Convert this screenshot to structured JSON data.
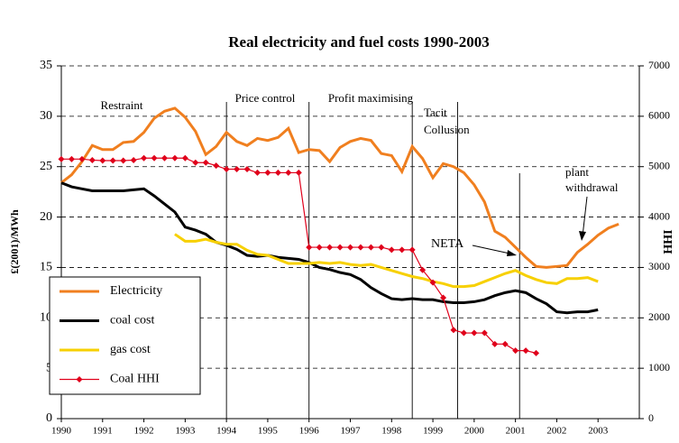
{
  "chart_data": {
    "type": "line",
    "title": "Real electricity and fuel costs 1990-2003",
    "y_label": "£(2001)/MWh",
    "y2_label": "HHI",
    "x": [
      1990,
      1990.25,
      1990.5,
      1990.75,
      1991,
      1991.25,
      1991.5,
      1991.75,
      1992,
      1992.25,
      1992.5,
      1992.75,
      1993,
      1993.25,
      1993.5,
      1993.75,
      1994,
      1994.25,
      1994.5,
      1994.75,
      1995,
      1995.25,
      1995.5,
      1995.75,
      1996,
      1996.25,
      1996.5,
      1996.75,
      1997,
      1997.25,
      1997.5,
      1997.75,
      1998,
      1998.25,
      1998.5,
      1998.75,
      1999,
      1999.25,
      1999.5,
      1999.75,
      2000,
      2000.25,
      2000.5,
      2000.75,
      2001,
      2001.25,
      2001.5,
      2001.75,
      2002,
      2002.25,
      2002.5,
      2002.75,
      2003,
      2003.25,
      2003.5
    ],
    "xlim": [
      1990,
      2004
    ],
    "xticks": [
      1990,
      1991,
      1992,
      1993,
      1994,
      1995,
      1996,
      1997,
      1998,
      1999,
      2000,
      2001,
      2002,
      2003
    ],
    "ylim": [
      0,
      35
    ],
    "yticks": [
      0,
      5,
      10,
      15,
      20,
      25,
      30,
      35
    ],
    "y2lim": [
      0,
      7000
    ],
    "y2ticks": [
      0,
      1000,
      2000,
      3000,
      4000,
      5000,
      6000,
      7000
    ],
    "grid": true,
    "legend": "lower left",
    "series": [
      {
        "name": "Electricity",
        "color": "#f07f1f",
        "values": [
          23.4,
          24.2,
          25.5,
          27.1,
          26.7,
          26.7,
          27.4,
          27.5,
          28.4,
          29.8,
          30.5,
          30.8,
          29.9,
          28.5,
          26.2,
          27.0,
          28.4,
          27.5,
          27.1,
          27.8,
          27.6,
          27.9,
          28.8,
          26.4,
          26.7,
          26.6,
          25.5,
          26.9,
          27.5,
          27.8,
          27.6,
          26.3,
          26.1,
          24.5,
          27.0,
          25.8,
          23.9,
          25.3,
          25.0,
          24.4,
          23.2,
          21.5,
          18.6,
          18.0,
          17.0,
          16.0,
          15.1,
          15.0,
          15.1,
          15.2,
          16.5,
          17.3,
          18.2,
          18.9,
          19.3
        ]
      },
      {
        "name": "coal cost",
        "color": "#000000",
        "values": [
          23.4,
          23.0,
          22.8,
          22.6,
          22.6,
          22.6,
          22.6,
          22.7,
          22.8,
          22.1,
          21.3,
          20.5,
          19.0,
          18.7,
          18.3,
          17.5,
          17.2,
          16.8,
          16.2,
          16.1,
          16.2,
          16.0,
          15.9,
          15.8,
          15.5,
          15.0,
          14.8,
          14.5,
          14.3,
          13.8,
          13.0,
          12.4,
          11.9,
          11.8,
          11.9,
          11.8,
          11.8,
          11.6,
          11.5,
          11.5,
          11.6,
          11.8,
          12.2,
          12.5,
          12.7,
          12.5,
          11.9,
          11.4,
          10.6,
          10.5,
          10.6,
          10.6,
          10.8,
          null,
          null
        ]
      },
      {
        "name": "gas cost",
        "color": "#f7d000",
        "values": [
          null,
          null,
          null,
          null,
          null,
          null,
          null,
          null,
          null,
          null,
          null,
          18.3,
          17.6,
          17.6,
          17.8,
          17.5,
          17.3,
          17.3,
          16.7,
          16.3,
          16.2,
          15.8,
          15.4,
          15.4,
          15.4,
          15.5,
          15.4,
          15.5,
          15.3,
          15.2,
          15.3,
          15.0,
          14.7,
          14.4,
          14.1,
          13.9,
          13.6,
          13.4,
          13.1,
          13.1,
          13.2,
          13.6,
          14.0,
          14.4,
          14.7,
          14.2,
          13.8,
          13.5,
          13.4,
          13.9,
          13.9,
          14.0,
          13.6,
          null,
          null
        ]
      },
      {
        "name": "Coal HHI",
        "color": "#e0001b",
        "axis": "y2",
        "marker": "diamond",
        "values": [
          5150,
          5150,
          5150,
          5130,
          5120,
          5120,
          5120,
          5130,
          5170,
          5170,
          5170,
          5170,
          5170,
          5080,
          5080,
          5020,
          4950,
          4950,
          4950,
          4880,
          4880,
          4880,
          4880,
          4880,
          3400,
          3400,
          3400,
          3400,
          3400,
          3400,
          3400,
          3400,
          3350,
          3350,
          3350,
          2950,
          2700,
          2400,
          1760,
          1700,
          1700,
          1700,
          1480,
          1480,
          1350,
          1350,
          1300,
          null,
          null,
          null,
          null,
          null,
          null,
          null,
          null
        ]
      }
    ],
    "dividers": [
      1994,
      1996,
      1998.5,
      1999.6,
      2001.1
    ],
    "annotations": [
      {
        "text": "Restraint"
      },
      {
        "text": "Price control"
      },
      {
        "text": "Profit maximising"
      },
      {
        "text": "Tacit"
      },
      {
        "text": "Collusion"
      },
      {
        "text": "NETA"
      },
      {
        "text": "plant"
      },
      {
        "text": "withdrawal"
      }
    ]
  }
}
